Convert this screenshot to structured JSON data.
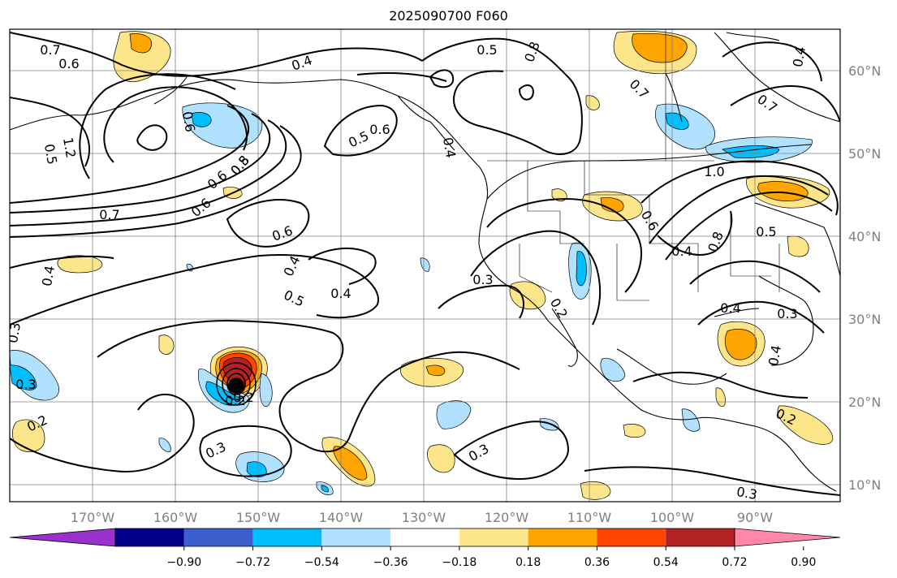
{
  "title": "2025090700 F060",
  "map": {
    "lon_labels": [
      "170°W",
      "160°W",
      "150°W",
      "140°W",
      "130°W",
      "120°W",
      "110°W",
      "100°W",
      "90°W"
    ],
    "lat_labels": [
      "60°N",
      "50°N",
      "40°N",
      "30°N",
      "20°N",
      "10°N"
    ],
    "contour_labels": [
      "0.7",
      "0.6",
      "0.4",
      "0.6",
      "0.5",
      "0.5",
      "0.8",
      "0.7",
      "0.4",
      "0.7",
      "0.6",
      "1.2",
      "0.5",
      "0.4",
      "0.5",
      "0.6",
      "0.8",
      "0.6",
      "0.7",
      "1.0",
      "0.6",
      "0.4",
      "0.5",
      "0.4",
      "0.4",
      "0.3",
      "0.6",
      "0.4",
      "0.8",
      "0.5",
      "0.3",
      "0.4",
      "0.3",
      "0.4",
      "0.3",
      "0.3",
      "0.2",
      "0.2",
      "0.3",
      "0.3",
      "0.2",
      "0.2",
      "0.2"
    ]
  },
  "colorbar": {
    "ticks": [
      "−0.90",
      "−0.72",
      "−0.54",
      "−0.36",
      "−0.18",
      "0.18",
      "0.36",
      "0.54",
      "0.72",
      "0.90"
    ],
    "colors": [
      "#9932cc",
      "#00008b",
      "#3a5fcd",
      "#00bfff",
      "#b0e2ff",
      "#ffffff",
      "#fde68a",
      "#ffa500",
      "#ff4500",
      "#b22222",
      "#ff88aa"
    ]
  }
}
